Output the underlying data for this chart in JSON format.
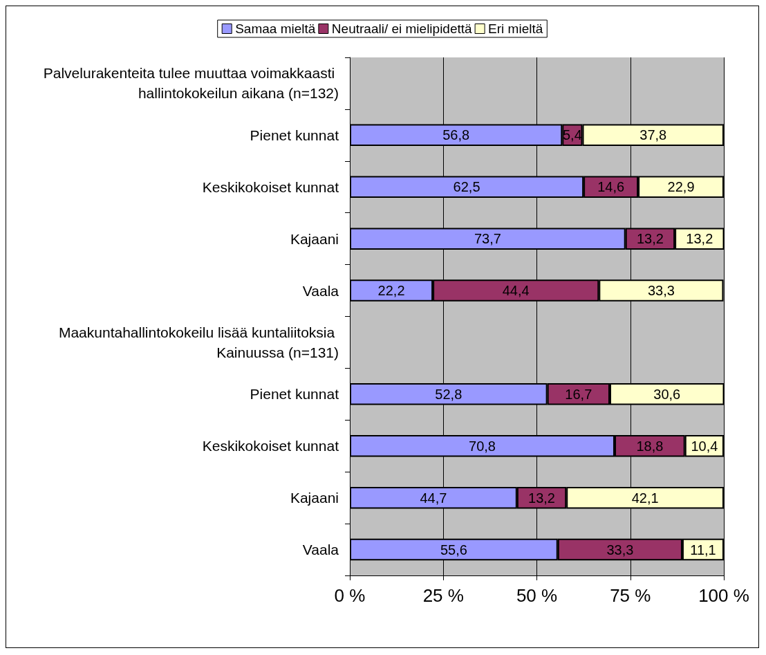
{
  "chart_data": {
    "type": "bar",
    "orientation": "horizontal",
    "stacked": true,
    "grid": "x",
    "legend": "top",
    "categories": [
      "Palvelurakenteita tulee muuttaa voimakkaasti hallintokokeilun aikana (n=132)",
      "Pienet kunnat",
      "Keskikokoiset kunnat",
      "Kajaani",
      "Vaala",
      "Maakuntahallintokokeilu lisää kuntaliitoksia Kainuussa (n=131)",
      "Pienet kunnat",
      "Keskikokoiset kunnat",
      "Kajaani",
      "Vaala"
    ],
    "series": [
      {
        "name": "Samaa mieltä",
        "color": "#9999ff",
        "values": [
          null,
          56.8,
          62.5,
          73.7,
          22.2,
          null,
          52.8,
          70.8,
          44.7,
          55.6
        ],
        "value_labels": [
          null,
          "56,8",
          "62,5",
          "73,7",
          "22,2",
          null,
          "52,8",
          "70,8",
          "44,7",
          "55,6"
        ]
      },
      {
        "name": "Neutraali/ ei mielipidettä",
        "color": "#993366",
        "values": [
          null,
          5.4,
          14.6,
          13.2,
          44.4,
          null,
          16.7,
          18.8,
          13.2,
          33.3
        ],
        "value_labels": [
          null,
          "5,4",
          "14,6",
          "13,2",
          "44,4",
          null,
          "16,7",
          "18,8",
          "13,2",
          "33,3"
        ]
      },
      {
        "name": "Eri mieltä",
        "color": "#ffffcc",
        "values": [
          null,
          37.8,
          22.9,
          13.2,
          33.3,
          null,
          30.6,
          10.4,
          42.1,
          11.1
        ],
        "value_labels": [
          null,
          "37,8",
          "22,9",
          "13,2",
          "33,3",
          null,
          "30,6",
          "10,4",
          "42,1",
          "11,1"
        ]
      }
    ],
    "xlim": [
      0,
      100
    ],
    "xticks": [
      {
        "value": 0,
        "label": "0 %"
      },
      {
        "value": 25,
        "label": "25 %"
      },
      {
        "value": 50,
        "label": "50 %"
      },
      {
        "value": 75,
        "label": "75 %"
      },
      {
        "value": 100,
        "label": "100 %"
      }
    ]
  }
}
